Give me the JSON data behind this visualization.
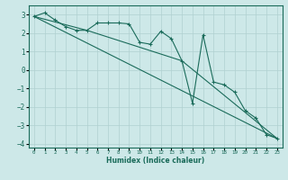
{
  "xlabel": "Humidex (Indice chaleur)",
  "ylabel": "",
  "xlim": [
    -0.5,
    23.5
  ],
  "ylim": [
    -4.2,
    3.5
  ],
  "yticks": [
    -4,
    -3,
    -2,
    -1,
    0,
    1,
    2,
    3
  ],
  "xticks": [
    0,
    1,
    2,
    3,
    4,
    5,
    6,
    7,
    8,
    9,
    10,
    11,
    12,
    13,
    14,
    15,
    16,
    17,
    18,
    19,
    20,
    21,
    22,
    23
  ],
  "background_color": "#cde8e8",
  "grid_color": "#b0d0d0",
  "line_color": "#1a6b5a",
  "line1_x": [
    0,
    1,
    2,
    3,
    4,
    5,
    6,
    7,
    8,
    9,
    10,
    11,
    12,
    13,
    14,
    15,
    16,
    17,
    18,
    19,
    20,
    21,
    22,
    23
  ],
  "line1_y": [
    2.9,
    3.1,
    2.7,
    2.35,
    2.15,
    2.15,
    2.55,
    2.55,
    2.55,
    2.5,
    1.5,
    1.4,
    2.1,
    1.7,
    0.5,
    -1.8,
    1.9,
    -0.65,
    -0.8,
    -1.2,
    -2.2,
    -2.6,
    -3.5,
    -3.7
  ],
  "line2_x": [
    0,
    23
  ],
  "line2_y": [
    2.9,
    -3.7
  ],
  "line3_x": [
    0,
    5,
    14,
    23
  ],
  "line3_y": [
    2.9,
    2.15,
    0.5,
    -3.7
  ]
}
